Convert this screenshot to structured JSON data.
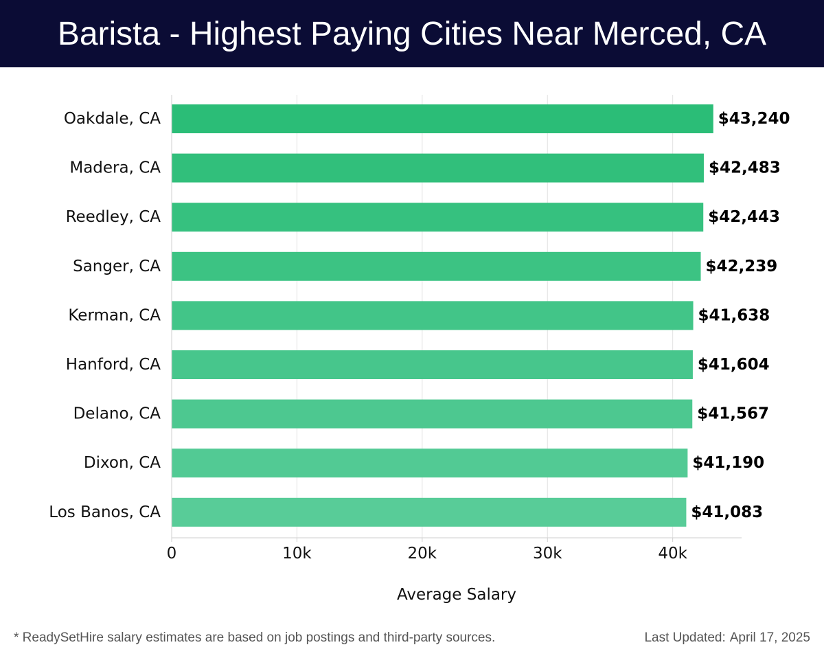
{
  "header": {
    "title": "Barista - Highest Paying Cities Near Merced, CA"
  },
  "chart_data": {
    "type": "bar",
    "orientation": "horizontal",
    "categories": [
      "Oakdale, CA",
      "Madera, CA",
      "Reedley, CA",
      "Sanger, CA",
      "Kerman, CA",
      "Hanford, CA",
      "Delano, CA",
      "Dixon, CA",
      "Los Banos, CA"
    ],
    "values": [
      43240,
      42483,
      42443,
      42239,
      41638,
      41604,
      41567,
      41190,
      41083
    ],
    "value_labels": [
      "$43,240",
      "$42,483",
      "$42,443",
      "$42,239",
      "$41,638",
      "$41,604",
      "$41,567",
      "$41,190",
      "$41,083"
    ],
    "xlabel": "Average Salary",
    "ylabel": "",
    "xlim": [
      0,
      45500
    ],
    "xticks": [
      0,
      10000,
      20000,
      30000,
      40000
    ],
    "xtick_labels": [
      "0",
      "10k",
      "20k",
      "30k",
      "40k"
    ],
    "grid": true,
    "bar_color_top": "#2bbd77",
    "bar_color_bottom": "#58cc98",
    "header_bg": "#0b0c35"
  },
  "footer": {
    "note": "* ReadySetHire salary estimates are based on job postings and third-party sources.",
    "updated_label": "Last Updated:",
    "updated_date": "April 17, 2025"
  }
}
